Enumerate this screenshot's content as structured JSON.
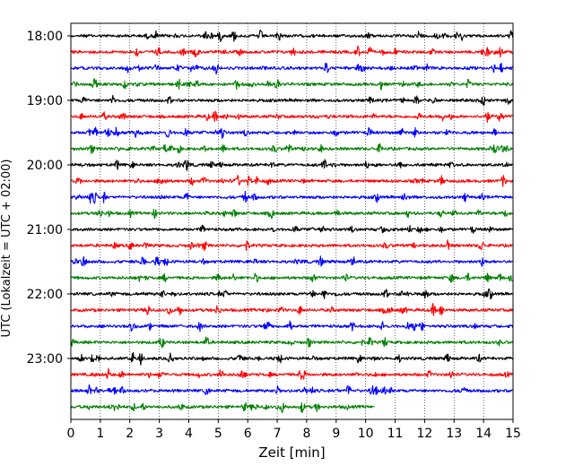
{
  "chart_data": {
    "type": "line",
    "title": "",
    "xlabel": "Zeit  [min]",
    "ylabel": "UTC (Lokalzeit = UTC + 02:00)",
    "xlim": [
      0,
      15
    ],
    "x_ticks": [
      0,
      1,
      2,
      3,
      4,
      5,
      6,
      7,
      8,
      9,
      10,
      11,
      12,
      13,
      14,
      15
    ],
    "y_ticks": [
      "18:00",
      "19:00",
      "20:00",
      "21:00",
      "22:00",
      "23:00"
    ],
    "grid": "vertical dotted at each minute",
    "trace_interval_min": 15,
    "colors": [
      "#000000",
      "#ff0000",
      "#0000ff",
      "#008000"
    ],
    "series": [
      {
        "start": "18:00",
        "color": "#000000",
        "end_min": 15
      },
      {
        "start": "18:15",
        "color": "#ff0000",
        "end_min": 15
      },
      {
        "start": "18:30",
        "color": "#0000ff",
        "end_min": 15
      },
      {
        "start": "18:45",
        "color": "#008000",
        "end_min": 15
      },
      {
        "start": "19:00",
        "color": "#000000",
        "end_min": 15
      },
      {
        "start": "19:15",
        "color": "#ff0000",
        "end_min": 15
      },
      {
        "start": "19:30",
        "color": "#0000ff",
        "end_min": 15
      },
      {
        "start": "19:45",
        "color": "#008000",
        "end_min": 15
      },
      {
        "start": "20:00",
        "color": "#000000",
        "end_min": 15
      },
      {
        "start": "20:15",
        "color": "#ff0000",
        "end_min": 15
      },
      {
        "start": "20:30",
        "color": "#0000ff",
        "end_min": 15
      },
      {
        "start": "20:45",
        "color": "#008000",
        "end_min": 15
      },
      {
        "start": "21:00",
        "color": "#000000",
        "end_min": 15
      },
      {
        "start": "21:15",
        "color": "#ff0000",
        "end_min": 15
      },
      {
        "start": "21:30",
        "color": "#0000ff",
        "end_min": 15
      },
      {
        "start": "21:45",
        "color": "#008000",
        "end_min": 15
      },
      {
        "start": "22:00",
        "color": "#000000",
        "end_min": 15
      },
      {
        "start": "22:15",
        "color": "#ff0000",
        "end_min": 15
      },
      {
        "start": "22:30",
        "color": "#0000ff",
        "end_min": 15
      },
      {
        "start": "22:45",
        "color": "#008000",
        "end_min": 15
      },
      {
        "start": "23:00",
        "color": "#000000",
        "end_min": 15
      },
      {
        "start": "23:15",
        "color": "#ff0000",
        "end_min": 15
      },
      {
        "start": "23:30",
        "color": "#0000ff",
        "end_min": 15
      },
      {
        "start": "23:45",
        "color": "#008000",
        "end_min": 10.3
      }
    ]
  }
}
